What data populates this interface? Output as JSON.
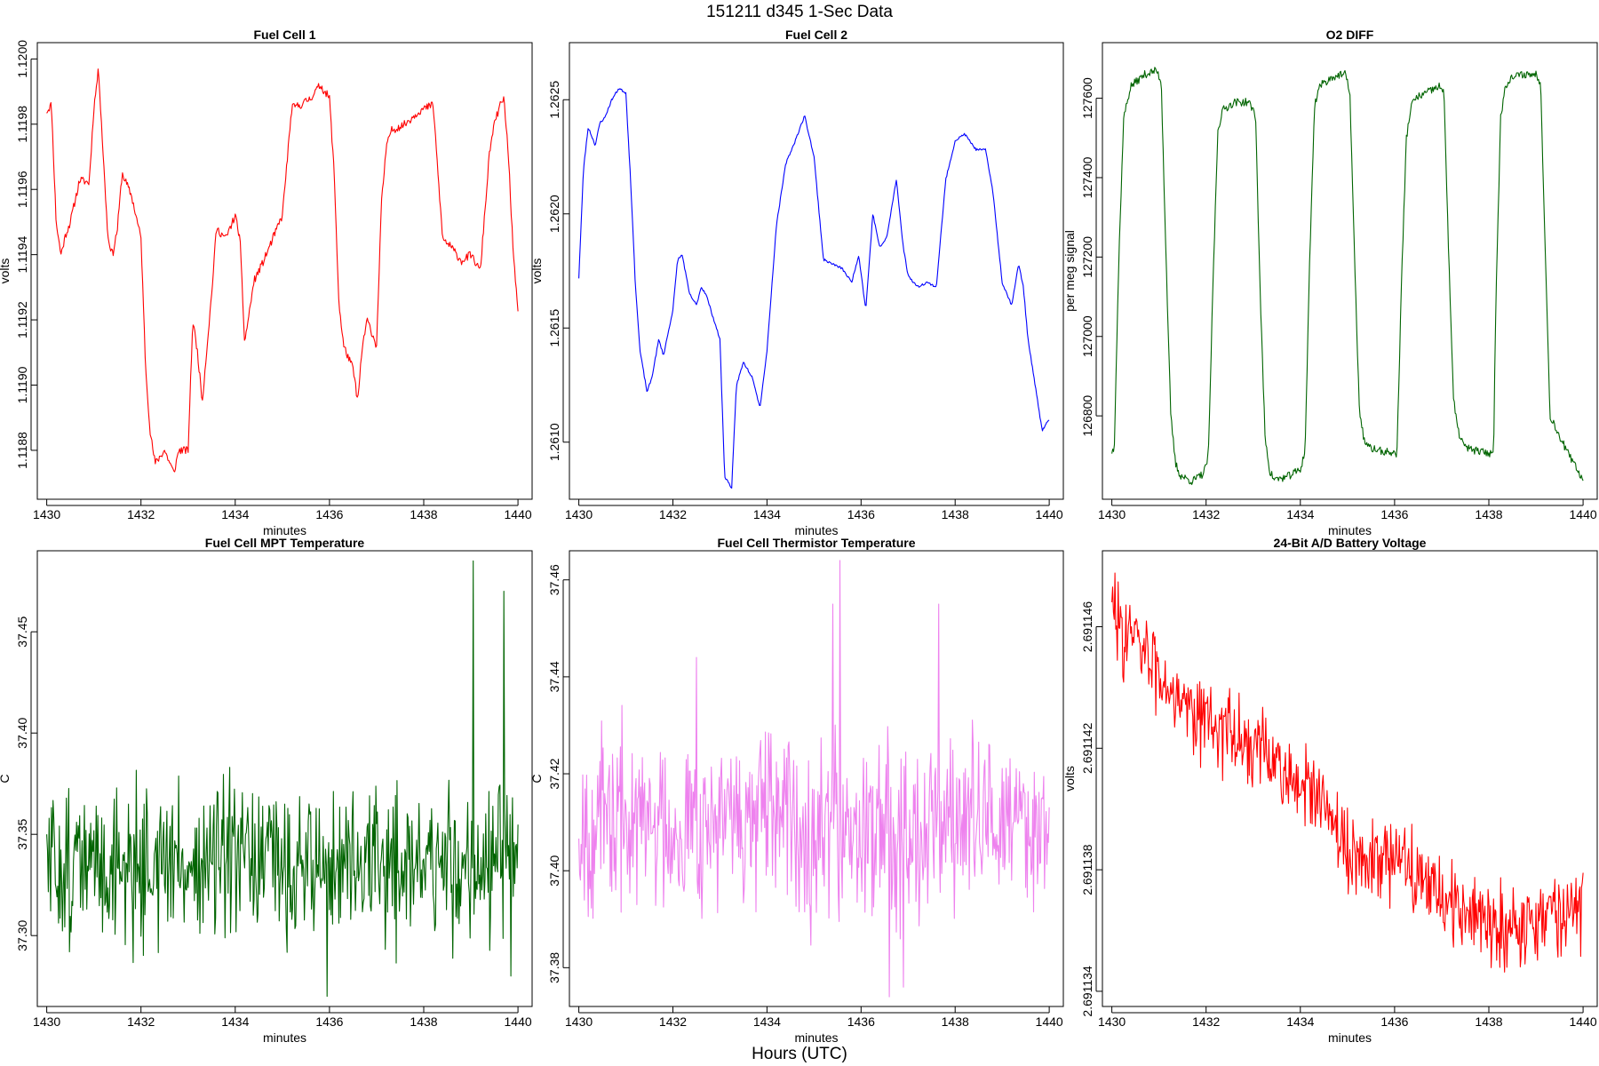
{
  "figure": {
    "title": "151211   d345   1-Sec Data",
    "footer": "Hours (UTC)"
  },
  "chart_data": [
    {
      "id": "fc1",
      "type": "line",
      "title": "Fuel Cell 1",
      "xlabel": "minutes",
      "ylabel": "volts",
      "color": "#ff0000",
      "xlim": [
        1429.8,
        1440.3
      ],
      "ylim": [
        1.11865,
        1.12005
      ],
      "xticks": [
        1430,
        1432,
        1434,
        1436,
        1438,
        1440
      ],
      "yticks": [
        1.1188,
        1.119,
        1.1192,
        1.1194,
        1.1196,
        1.1198,
        1.12
      ],
      "ytick_labels": [
        "1.1188",
        "1.1190",
        "1.1192",
        "1.1194",
        "1.1196",
        "1.1198",
        "1.1200"
      ],
      "noise": 1.2e-05,
      "seed": 11,
      "x": [
        1430.0,
        1430.1,
        1430.2,
        1430.3,
        1430.4,
        1430.5,
        1430.7,
        1430.9,
        1431.0,
        1431.1,
        1431.2,
        1431.3,
        1431.4,
        1431.5,
        1431.6,
        1431.8,
        1432.0,
        1432.1,
        1432.2,
        1432.3,
        1432.5,
        1432.7,
        1432.8,
        1433.0,
        1433.1,
        1433.2,
        1433.3,
        1433.5,
        1433.6,
        1433.8,
        1434.0,
        1434.1,
        1434.2,
        1434.4,
        1434.6,
        1434.8,
        1435.0,
        1435.2,
        1435.4,
        1435.6,
        1435.8,
        1436.0,
        1436.1,
        1436.2,
        1436.3,
        1436.5,
        1436.6,
        1436.7,
        1436.8,
        1437.0,
        1437.1,
        1437.2,
        1437.3,
        1437.6,
        1437.9,
        1438.2,
        1438.4,
        1438.6,
        1438.8,
        1439.0,
        1439.2,
        1439.4,
        1439.5,
        1439.6,
        1439.7,
        1439.8,
        1439.9,
        1440.0
      ],
      "y": [
        1.11984,
        1.11986,
        1.1195,
        1.1194,
        1.11946,
        1.1195,
        1.11963,
        1.11962,
        1.11985,
        1.11997,
        1.1197,
        1.11945,
        1.1194,
        1.11948,
        1.11965,
        1.11958,
        1.11945,
        1.11905,
        1.11885,
        1.11876,
        1.1188,
        1.11873,
        1.1188,
        1.1188,
        1.1192,
        1.1191,
        1.11895,
        1.11928,
        1.11948,
        1.11945,
        1.11952,
        1.11945,
        1.11913,
        1.11932,
        1.11938,
        1.11945,
        1.11952,
        1.11985,
        1.11986,
        1.11988,
        1.11992,
        1.11988,
        1.11965,
        1.11925,
        1.11912,
        1.11905,
        1.11895,
        1.11912,
        1.1192,
        1.11912,
        1.11955,
        1.11972,
        1.11978,
        1.1198,
        1.11984,
        1.11986,
        1.11945,
        1.11942,
        1.11938,
        1.1194,
        1.11935,
        1.11972,
        1.1198,
        1.11985,
        1.11988,
        1.1197,
        1.1194,
        1.11922
      ]
    },
    {
      "id": "fc2",
      "type": "line",
      "title": "Fuel Cell 2",
      "xlabel": "minutes",
      "ylabel": "volts",
      "color": "#0000ff",
      "xlim": [
        1429.8,
        1440.3
      ],
      "ylim": [
        1.26075,
        1.26275
      ],
      "xticks": [
        1430,
        1432,
        1434,
        1436,
        1438,
        1440
      ],
      "yticks": [
        1.261,
        1.2615,
        1.262,
        1.2625
      ],
      "ytick_labels": [
        "1.2610",
        "1.2615",
        "1.2620",
        "1.2625"
      ],
      "noise": 5e-06,
      "seed": 23,
      "x": [
        1430.0,
        1430.1,
        1430.2,
        1430.35,
        1430.45,
        1430.55,
        1430.7,
        1430.85,
        1431.0,
        1431.1,
        1431.2,
        1431.3,
        1431.45,
        1431.55,
        1431.7,
        1431.8,
        1432.0,
        1432.1,
        1432.2,
        1432.35,
        1432.5,
        1432.6,
        1432.7,
        1432.85,
        1433.0,
        1433.1,
        1433.25,
        1433.35,
        1433.5,
        1433.7,
        1433.85,
        1434.0,
        1434.2,
        1434.4,
        1434.6,
        1434.8,
        1435.0,
        1435.2,
        1435.4,
        1435.6,
        1435.8,
        1435.95,
        1436.1,
        1436.25,
        1436.4,
        1436.55,
        1436.75,
        1436.9,
        1437.0,
        1437.2,
        1437.4,
        1437.6,
        1437.8,
        1438.0,
        1438.2,
        1438.45,
        1438.65,
        1438.8,
        1439.0,
        1439.2,
        1439.35,
        1439.45,
        1439.55,
        1439.7,
        1439.85,
        1440.0
      ],
      "y": [
        1.26172,
        1.2622,
        1.26238,
        1.2623,
        1.2624,
        1.26242,
        1.2625,
        1.26255,
        1.26253,
        1.26215,
        1.2617,
        1.2614,
        1.26122,
        1.26128,
        1.26145,
        1.26138,
        1.26158,
        1.2618,
        1.26182,
        1.26165,
        1.2616,
        1.26168,
        1.26165,
        1.26155,
        1.26145,
        1.26085,
        1.2608,
        1.26125,
        1.26135,
        1.26128,
        1.26115,
        1.2614,
        1.26195,
        1.26222,
        1.26232,
        1.26243,
        1.26225,
        1.2618,
        1.26178,
        1.26176,
        1.2617,
        1.26182,
        1.26158,
        1.262,
        1.26185,
        1.2619,
        1.26215,
        1.26185,
        1.26173,
        1.26168,
        1.2617,
        1.26168,
        1.26215,
        1.26232,
        1.26235,
        1.26228,
        1.26228,
        1.2621,
        1.2617,
        1.2616,
        1.26178,
        1.26168,
        1.26145,
        1.26125,
        1.26105,
        1.2611
      ]
    },
    {
      "id": "o2",
      "type": "line",
      "title": "O2 DIFF",
      "xlabel": "minutes",
      "ylabel": "per meg signal",
      "color": "#006400",
      "xlim": [
        1429.8,
        1440.3
      ],
      "ylim": [
        126590,
        127740
      ],
      "xticks": [
        1430,
        1432,
        1434,
        1436,
        1438,
        1440
      ],
      "yticks": [
        126800,
        127000,
        127200,
        127400,
        127600
      ],
      "ytick_labels": [
        "126800",
        "127000",
        "127200",
        "127400",
        "127600"
      ],
      "noise": 10,
      "seed": 37,
      "x": [
        1430.0,
        1430.05,
        1430.15,
        1430.25,
        1430.4,
        1430.7,
        1430.95,
        1431.05,
        1431.15,
        1431.25,
        1431.35,
        1431.45,
        1431.7,
        1431.95,
        1432.05,
        1432.15,
        1432.25,
        1432.35,
        1432.6,
        1432.9,
        1433.05,
        1433.15,
        1433.25,
        1433.35,
        1433.45,
        1433.7,
        1434.0,
        1434.1,
        1434.2,
        1434.3,
        1434.4,
        1434.7,
        1434.95,
        1435.05,
        1435.15,
        1435.25,
        1435.35,
        1435.45,
        1435.75,
        1436.05,
        1436.15,
        1436.25,
        1436.35,
        1436.45,
        1436.7,
        1436.95,
        1437.05,
        1437.15,
        1437.25,
        1437.35,
        1437.5,
        1437.8,
        1438.1,
        1438.15,
        1438.25,
        1438.35,
        1438.45,
        1438.7,
        1439.0,
        1439.1,
        1439.2,
        1439.3,
        1439.5,
        1439.7,
        1440.0
      ],
      "y": [
        126710,
        126720,
        127200,
        127550,
        127630,
        127660,
        127670,
        127640,
        127200,
        126800,
        126680,
        126650,
        126635,
        126655,
        126700,
        127150,
        127520,
        127570,
        127590,
        127590,
        127560,
        127100,
        126750,
        126660,
        126640,
        126645,
        126665,
        126710,
        127200,
        127580,
        127630,
        127655,
        127660,
        127620,
        127200,
        126820,
        126740,
        126720,
        126710,
        126705,
        127150,
        127500,
        127580,
        127600,
        127615,
        127630,
        127610,
        127200,
        126840,
        126760,
        126720,
        126710,
        126705,
        127100,
        127550,
        127630,
        127650,
        127660,
        127660,
        127640,
        127200,
        126800,
        126750,
        126700,
        126640
      ]
    },
    {
      "id": "mpt",
      "type": "line",
      "title": "Fuel Cell MPT Temperature",
      "xlabel": "minutes",
      "ylabel": "C",
      "color": "#006400",
      "xlim": [
        1429.8,
        1440.3
      ],
      "ylim": [
        37.265,
        37.49
      ],
      "xticks": [
        1430,
        1432,
        1434,
        1436,
        1438,
        1440
      ],
      "yticks": [
        37.3,
        37.35,
        37.4,
        37.45
      ],
      "ytick_labels": [
        "37.30",
        "37.35",
        "37.40",
        "37.45"
      ],
      "noise_points": 600,
      "base": 37.335,
      "amp": 0.025,
      "seed": 51,
      "spikes": [
        [
          1439.05,
          37.485
        ],
        [
          1439.7,
          37.47
        ],
        [
          1435.95,
          37.27
        ],
        [
          1439.85,
          37.28
        ]
      ]
    },
    {
      "id": "therm",
      "type": "line",
      "title": "Fuel Cell Thermistor Temperature",
      "xlabel": "minutes",
      "ylabel": "C",
      "color": "#ee82ee",
      "xlim": [
        1429.8,
        1440.3
      ],
      "ylim": [
        37.372,
        37.466
      ],
      "xticks": [
        1430,
        1432,
        1434,
        1436,
        1438,
        1440
      ],
      "yticks": [
        37.38,
        37.4,
        37.42,
        37.44,
        37.46
      ],
      "ytick_labels": [
        "37.38",
        "37.40",
        "37.42",
        "37.44",
        "37.46"
      ],
      "noise_points": 600,
      "base": 37.41,
      "amp": 0.012,
      "seed": 67,
      "spikes": [
        [
          1435.55,
          37.464
        ],
        [
          1436.6,
          37.374
        ],
        [
          1435.4,
          37.455
        ],
        [
          1437.65,
          37.455
        ],
        [
          1432.5,
          37.444
        ],
        [
          1436.9,
          37.376
        ]
      ]
    },
    {
      "id": "batt",
      "type": "line",
      "title": "24-Bit A/D Battery Voltage",
      "xlabel": "minutes",
      "ylabel": "volts",
      "color": "#ff0000",
      "xlim": [
        1429.8,
        1440.3
      ],
      "ylim": [
        2.6911335,
        2.6911485
      ],
      "xticks": [
        1430,
        1432,
        1434,
        1436,
        1438,
        1440
      ],
      "yticks": [
        2.691134,
        2.691138,
        2.691142,
        2.691146
      ],
      "ytick_labels": [
        "2.691134",
        "2.691138",
        "2.691142",
        "2.691146"
      ],
      "noise_points": 600,
      "trend": [
        [
          1430.0,
          2.6911465
        ],
        [
          1431.0,
          2.6911445
        ],
        [
          1432.0,
          2.691143
        ],
        [
          1433.5,
          2.6911415
        ],
        [
          1434.5,
          2.69114
        ],
        [
          1435.0,
          2.6911385
        ],
        [
          1436.5,
          2.691138
        ],
        [
          1437.5,
          2.6911365
        ],
        [
          1438.5,
          2.6911362
        ],
        [
          1440.0,
          2.6911368
        ]
      ],
      "amp": 9e-07,
      "seed": 83
    }
  ]
}
